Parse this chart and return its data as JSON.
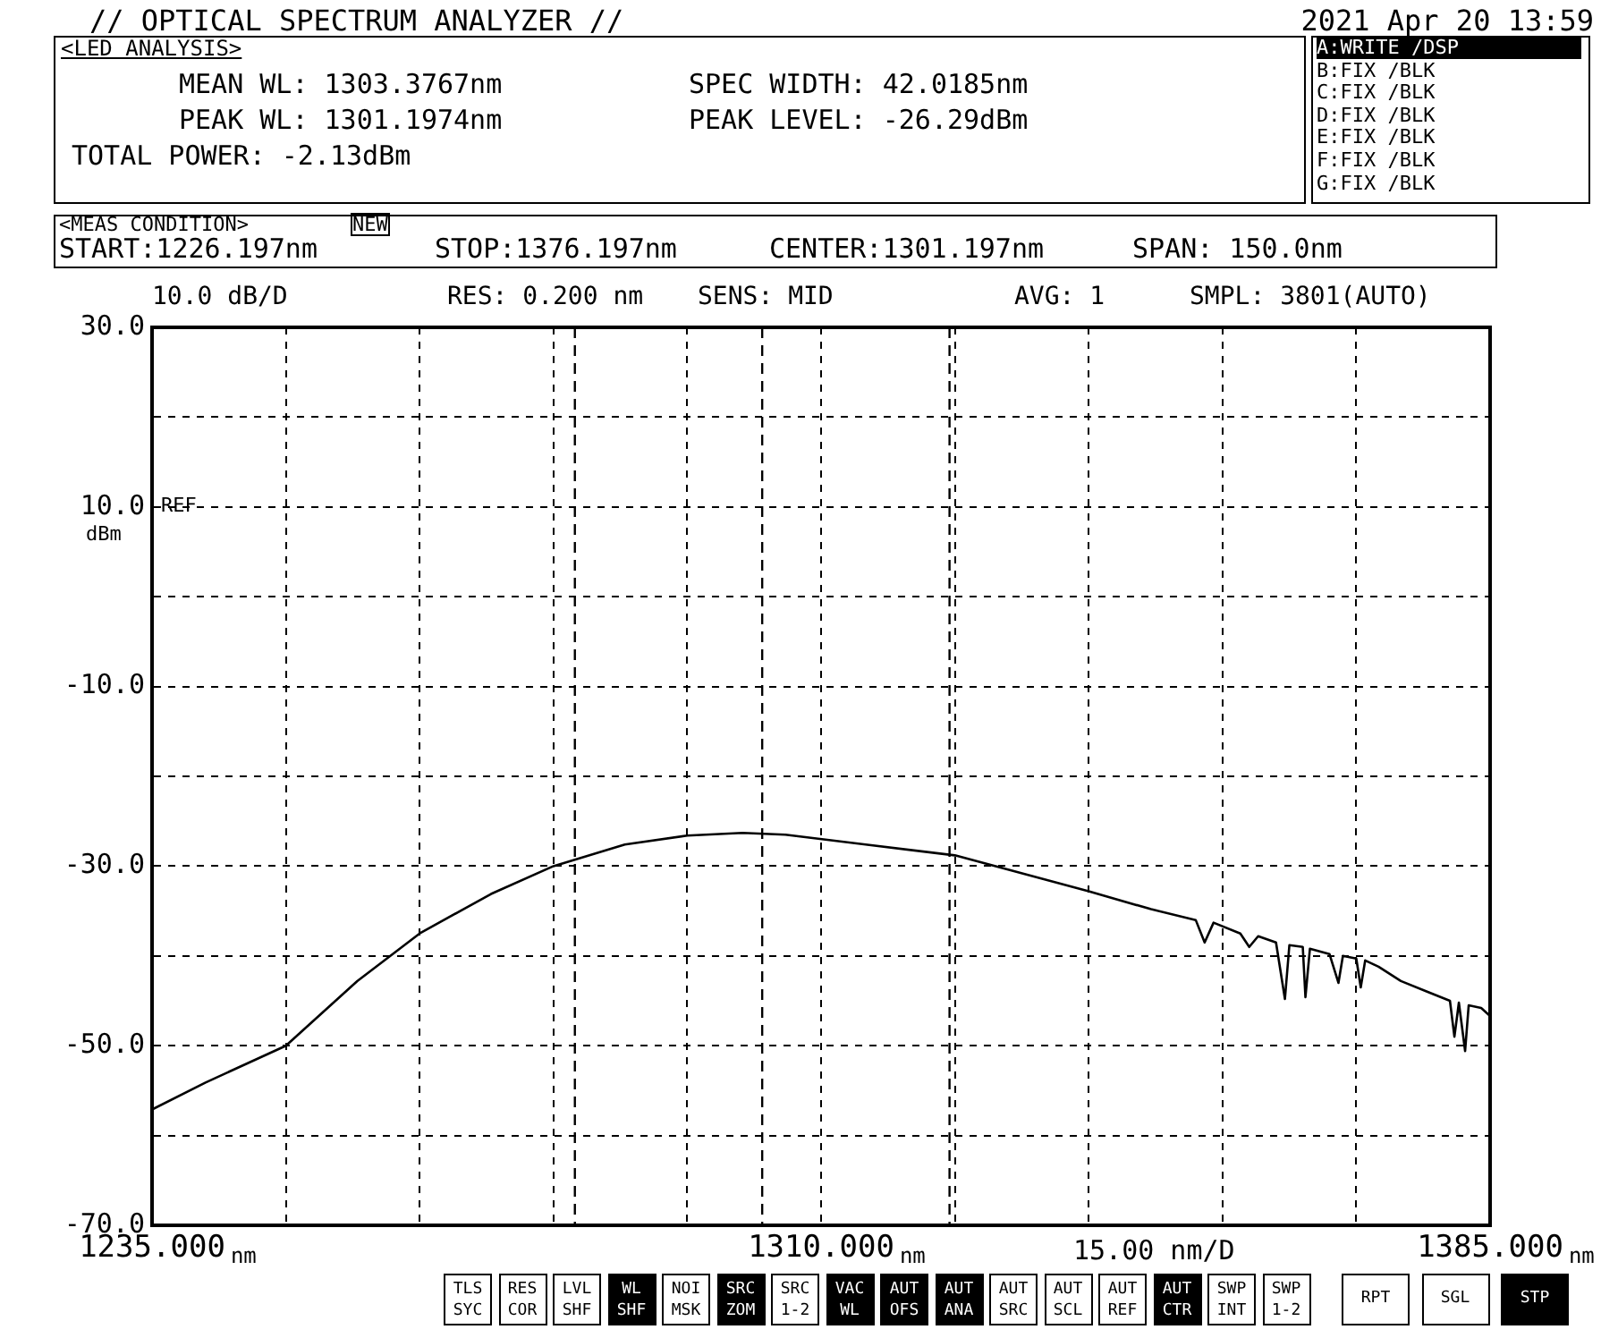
{
  "chart_data": {
    "type": "line",
    "title": "// OPTICAL SPECTRUM ANALYZER //",
    "subtitle": "2021 Apr 20 13:59",
    "xlabel": "nm",
    "ylabel": "dBm",
    "x": [
      1235,
      1241,
      1250,
      1258,
      1265,
      1273,
      1280,
      1288,
      1295,
      1301.2,
      1306,
      1315,
      1325,
      1340,
      1347,
      1352,
      1353,
      1354,
      1357,
      1358,
      1359,
      1361,
      1362,
      1362.5,
      1364,
      1364.3,
      1364.8,
      1367,
      1368,
      1368.5,
      1370,
      1370.5,
      1371,
      1372.5,
      1375,
      1378,
      1380.5,
      1381,
      1381.5,
      1382.2,
      1382.6,
      1384,
      1385
    ],
    "series": [
      {
        "color": "#000000",
        "values": [
          -57.1,
          -54.1,
          -50,
          -42.8,
          -37.5,
          -33.1,
          -30,
          -27.6,
          -26.6,
          -26.3,
          -26.5,
          -27.6,
          -28.8,
          -32.8,
          -34.8,
          -36.0,
          -38.5,
          -36.3,
          -37.5,
          -39,
          -37.8,
          -38.5,
          -44.8,
          -38.8,
          -39,
          -44.6,
          -39.2,
          -39.8,
          -43,
          -40,
          -40.3,
          -43.5,
          -40.5,
          -41.2,
          -42.8,
          -44,
          -45,
          -49,
          -45.2,
          -50.6,
          -45.5,
          -45.8,
          -46.7
        ]
      }
    ],
    "xlim": [
      1235,
      1385
    ],
    "xticks": [
      {
        "value": 1235,
        "label": "1235.000"
      },
      {
        "value": 1250,
        "label": null
      },
      {
        "value": 1265,
        "label": null
      },
      {
        "value": 1280,
        "label": null
      },
      {
        "value": 1295,
        "label": null
      },
      {
        "value": 1310,
        "label": "1310.000"
      },
      {
        "value": 1325,
        "label": null
      },
      {
        "value": 1340,
        "label": null
      },
      {
        "value": 1355,
        "label": null
      },
      {
        "value": 1370,
        "label": null
      },
      {
        "value": 1385,
        "label": "1385.000"
      }
    ],
    "ylim": [
      -70,
      30
    ],
    "yticks": [
      {
        "value": -70,
        "label": "-70.0"
      },
      {
        "value": -60,
        "label": null
      },
      {
        "value": -50,
        "label": "-50.0"
      },
      {
        "value": -40,
        "label": null
      },
      {
        "value": -30,
        "label": "-30.0"
      },
      {
        "value": -20,
        "label": null
      },
      {
        "value": -10,
        "label": "-10.0"
      },
      {
        "value": 0,
        "label": null
      },
      {
        "value": 10,
        "label": "10.0"
      },
      {
        "value": 20,
        "label": null
      },
      {
        "value": 30,
        "label": "30.0"
      }
    ],
    "grid": true,
    "legend": false,
    "marker": "none",
    "line_style": "solid",
    "ref_lines": [
      {
        "axis": "x",
        "value": 1282.4,
        "line_style": "dashed"
      },
      {
        "axis": "x",
        "value": 1303.4,
        "line_style": "dashed"
      },
      {
        "axis": "x",
        "value": 1324.4,
        "line_style": "dashed"
      }
    ],
    "annotations": [
      "<LED ANALYSIS>",
      "MEAN WL: 1303.3767nm",
      "PEAK WL: 1301.1974nm",
      "TOTAL POWER: -2.13dBm",
      "SPEC WIDTH: 42.0185nm",
      "PEAK LEVEL: -26.29dBm",
      "A:WRITE /DSP",
      "B:FIX /BLK",
      "C:FIX /BLK",
      "D:FIX /BLK",
      "E:FIX /BLK",
      "F:FIX /BLK",
      "G:FIX /BLK",
      "<MEAS CONDITION>",
      "NEW",
      "START:1226.197nm",
      "STOP:1376.197nm",
      "CENTER:1301.197nm",
      "SPAN: 150.0nm",
      "10.0 dB/D",
      "RES: 0.200 nm",
      "SENS: MID",
      "AVG: 1",
      "SMPL: 3801(AUTO)",
      "REF",
      "15.00 nm/D",
      "TLS SYC",
      "RES COR",
      "LVL SHF",
      "WL SHF",
      "NOI MSK",
      "SRC ZOM",
      "SRC 1-2",
      "VAC WL",
      "AUT OFS",
      "AUT ANA",
      "AUT SRC",
      "AUT SCL",
      "AUT REF",
      "AUT CTR",
      "SWP INT",
      "SWP 1-2",
      "RPT",
      "SGL",
      "STP"
    ]
  }
}
